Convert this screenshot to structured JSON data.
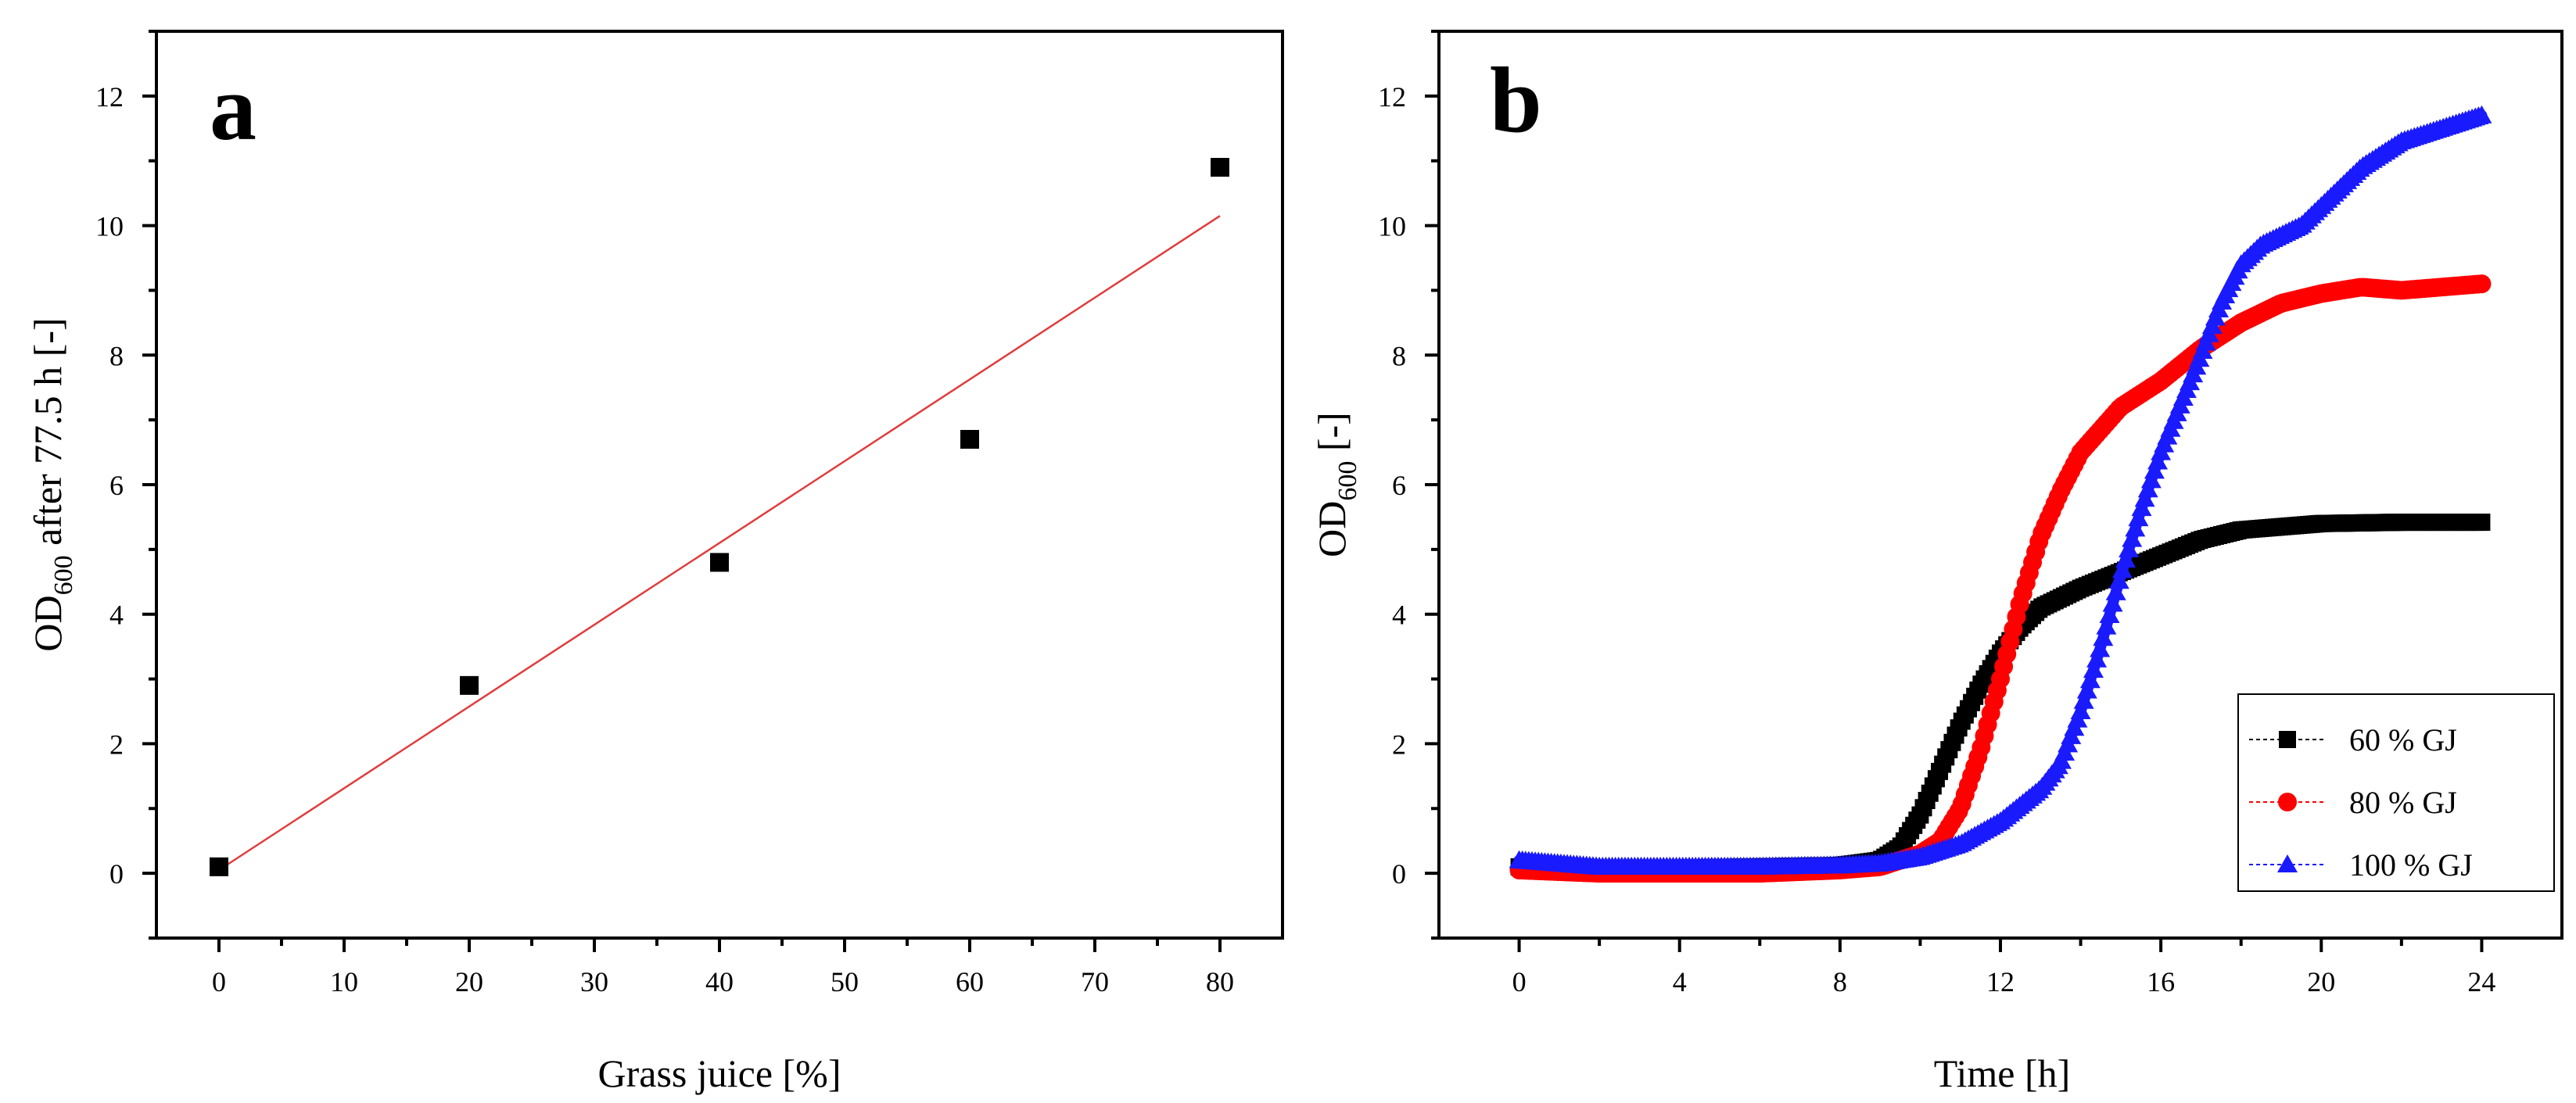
{
  "chart_data": [
    {
      "panel_label": "a",
      "type": "scatter",
      "xlabel": "Grass juice [%]",
      "ylabel_main": "OD",
      "ylabel_sub": "600",
      "ylabel_rest": " after 77.5 h [-]",
      "xlim": [
        -5,
        85
      ],
      "ylim": [
        -1,
        13
      ],
      "xticks": [
        0,
        10,
        20,
        30,
        40,
        50,
        60,
        70,
        80
      ],
      "yticks": [
        0,
        2,
        4,
        6,
        8,
        10,
        12
      ],
      "points": [
        {
          "x": 0,
          "y": 0.1
        },
        {
          "x": 20,
          "y": 2.9
        },
        {
          "x": 40,
          "y": 4.8
        },
        {
          "x": 60,
          "y": 6.7
        },
        {
          "x": 80,
          "y": 10.9
        }
      ],
      "fit_line": {
        "x": [
          0,
          80
        ],
        "y": [
          0.05,
          10.15
        ],
        "color": "#e03c3c"
      }
    },
    {
      "panel_label": "b",
      "type": "line",
      "xlabel": "Time [h]",
      "ylabel_main": "OD",
      "ylabel_sub": "600",
      "ylabel_rest": " [-]",
      "xlim": [
        -2,
        26
      ],
      "ylim": [
        -1,
        13
      ],
      "xticks": [
        0,
        4,
        8,
        12,
        16,
        20,
        24
      ],
      "yticks": [
        0,
        2,
        4,
        6,
        8,
        10,
        12
      ],
      "legend_position": "bottom-right",
      "series": [
        {
          "name": "60 % GJ",
          "color": "#000000",
          "marker": "square",
          "x": [
            0,
            2,
            4,
            6,
            8,
            9,
            9.5,
            10,
            10.5,
            11,
            11.5,
            12,
            12.5,
            13,
            14,
            15,
            16,
            17,
            18,
            19,
            20,
            22,
            24
          ],
          "y": [
            0.1,
            0.08,
            0.08,
            0.1,
            0.12,
            0.2,
            0.4,
            0.9,
            1.6,
            2.3,
            2.9,
            3.4,
            3.8,
            4.1,
            4.4,
            4.65,
            4.9,
            5.15,
            5.3,
            5.35,
            5.4,
            5.42,
            5.42
          ]
        },
        {
          "name": "80 % GJ",
          "color": "#ff0000",
          "marker": "circle",
          "x": [
            0,
            2,
            4,
            6,
            8,
            9,
            10,
            10.5,
            11,
            11.5,
            12,
            12.5,
            13,
            13.5,
            14,
            15,
            16,
            17,
            18,
            19,
            20,
            21,
            22,
            23,
            24
          ],
          "y": [
            0.05,
            0.0,
            0.0,
            0.0,
            0.05,
            0.1,
            0.3,
            0.5,
            1.0,
            1.9,
            3.0,
            4.2,
            5.2,
            5.9,
            6.5,
            7.2,
            7.6,
            8.1,
            8.5,
            8.8,
            8.95,
            9.05,
            9.0,
            9.05,
            9.1
          ]
        },
        {
          "name": "100 % GJ",
          "color": "#1a1aff",
          "marker": "triangle",
          "x": [
            0,
            2,
            4,
            6,
            8,
            9,
            10,
            11,
            12,
            13,
            13.5,
            14,
            14.5,
            15,
            15.5,
            16,
            17,
            17.5,
            18,
            18.5,
            19,
            19.5,
            20,
            21,
            22,
            23,
            24
          ],
          "y": [
            0.2,
            0.1,
            0.1,
            0.1,
            0.12,
            0.15,
            0.25,
            0.45,
            0.8,
            1.3,
            1.7,
            2.5,
            3.5,
            4.6,
            5.6,
            6.5,
            8.0,
            8.8,
            9.4,
            9.7,
            9.85,
            10.0,
            10.3,
            10.9,
            11.3,
            11.5,
            11.7
          ]
        }
      ]
    }
  ]
}
